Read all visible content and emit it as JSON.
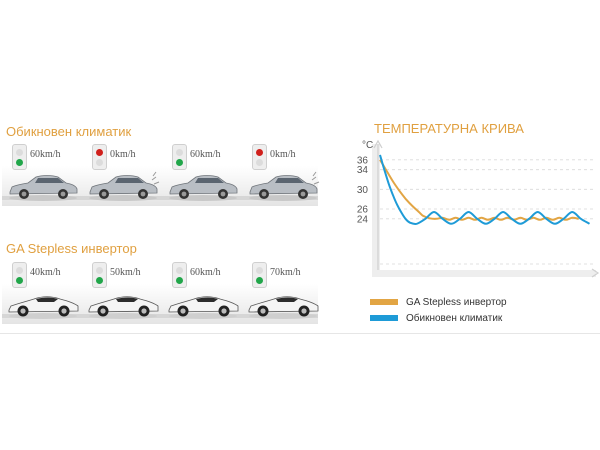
{
  "left": {
    "sections": [
      {
        "title": "Обикновен климатик",
        "cells": [
          {
            "speed": "60km/h",
            "light": "green"
          },
          {
            "speed": "0km/h",
            "light": "red"
          },
          {
            "speed": "60km/h",
            "light": "green"
          },
          {
            "speed": "0km/h",
            "light": "red"
          }
        ],
        "car_style": "sedan"
      },
      {
        "title": "GA Stepless инвертор",
        "cells": [
          {
            "speed": "40km/h",
            "light": "green"
          },
          {
            "speed": "50km/h",
            "light": "green"
          },
          {
            "speed": "60km/h",
            "light": "green"
          },
          {
            "speed": "70km/h",
            "light": "green"
          }
        ],
        "car_style": "sports"
      }
    ],
    "colors": {
      "green": "#21a64a",
      "red": "#d0201c",
      "title": "#e0a040"
    }
  },
  "chart_data": {
    "type": "line",
    "title": "ТЕМПЕРАТУРНА КРИВА",
    "ylabel": "°C",
    "ylim": [
      14,
      38
    ],
    "yticks": [
      36,
      34,
      30,
      26,
      24
    ],
    "xlim": [
      0,
      100
    ],
    "series": [
      {
        "name": "GA Stepless инвертор",
        "color": "#e2a544",
        "x": [
          0,
          3,
          6,
          9,
          12,
          15,
          18,
          20,
          23,
          26,
          29,
          32,
          35,
          38,
          41,
          44,
          47,
          50,
          53,
          56,
          59,
          62,
          65,
          68,
          71,
          74,
          77,
          80,
          83,
          86,
          89,
          92
        ],
        "values": [
          36,
          33.8,
          31.6,
          29.7,
          28,
          26.6,
          25.4,
          24.6,
          24.1,
          24,
          24.2,
          23.8,
          24.2,
          23.8,
          24.2,
          23.8,
          24.2,
          23.8,
          24.2,
          23.8,
          24.2,
          23.8,
          24.2,
          23.8,
          24.2,
          23.8,
          24.2,
          23.8,
          24.2,
          23.8,
          24.2,
          24
        ]
      },
      {
        "name": "Обикновен климатик",
        "color": "#1e9bd7",
        "x": [
          0,
          2,
          4,
          6,
          8,
          10,
          12,
          14,
          17,
          21,
          25,
          29,
          33,
          37,
          41,
          45,
          49,
          53,
          57,
          61,
          65,
          69,
          73,
          77,
          81,
          85,
          89,
          93,
          97
        ],
        "values": [
          37,
          34,
          31.2,
          28.8,
          26.8,
          25.2,
          23.9,
          23.2,
          23,
          24,
          25.4,
          24,
          23,
          24,
          25.4,
          24,
          23,
          24,
          25.4,
          24,
          23,
          24,
          25.4,
          24,
          23,
          24,
          25.4,
          24,
          23
        ]
      }
    ],
    "legend": "bottom",
    "grid": "dashed horizontal"
  }
}
